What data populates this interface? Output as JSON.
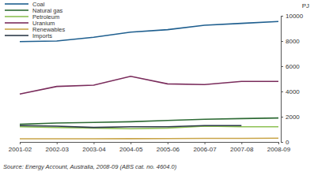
{
  "chart_data": {
    "type": "line",
    "y_label": "PJ",
    "source": "Source: Energy Account, Australia, 2008-09 (ABS cat. no. 4604.0)",
    "categories": [
      "2001-02",
      "2002-03",
      "2003-04",
      "2004-05",
      "2005-06",
      "2006-07",
      "2007-08",
      "2008-09"
    ],
    "series": [
      {
        "name": "Coal",
        "color": "#1f5f8f",
        "values": [
          7950,
          8000,
          8300,
          8700,
          8900,
          9250,
          9400,
          9550
        ]
      },
      {
        "name": "Natural gas",
        "color": "#2e6b35",
        "values": [
          1400,
          1500,
          1550,
          1600,
          1700,
          1800,
          1850,
          1900
        ]
      },
      {
        "name": "Petroleum",
        "color": "#8dc153",
        "values": [
          1200,
          1150,
          1100,
          1050,
          1100,
          1250,
          1200,
          1200
        ]
      },
      {
        "name": "Uranium",
        "color": "#7a2c5c",
        "values": [
          3800,
          4400,
          4500,
          5200,
          4600,
          4550,
          4800,
          4800
        ]
      },
      {
        "name": "Renewables",
        "color": "#c9a548",
        "values": [
          250,
          250,
          250,
          260,
          270,
          280,
          280,
          300
        ]
      },
      {
        "name": "Imports",
        "color": "#2d3a4a",
        "values": [
          1300,
          1250,
          1150,
          1200,
          1200,
          1300,
          1300,
          null
        ]
      }
    ],
    "ylim": [
      0,
      10000
    ],
    "yticks": [
      0,
      2000,
      4000,
      6000,
      8000,
      10000
    ],
    "grid": false,
    "legend": "top-left"
  }
}
